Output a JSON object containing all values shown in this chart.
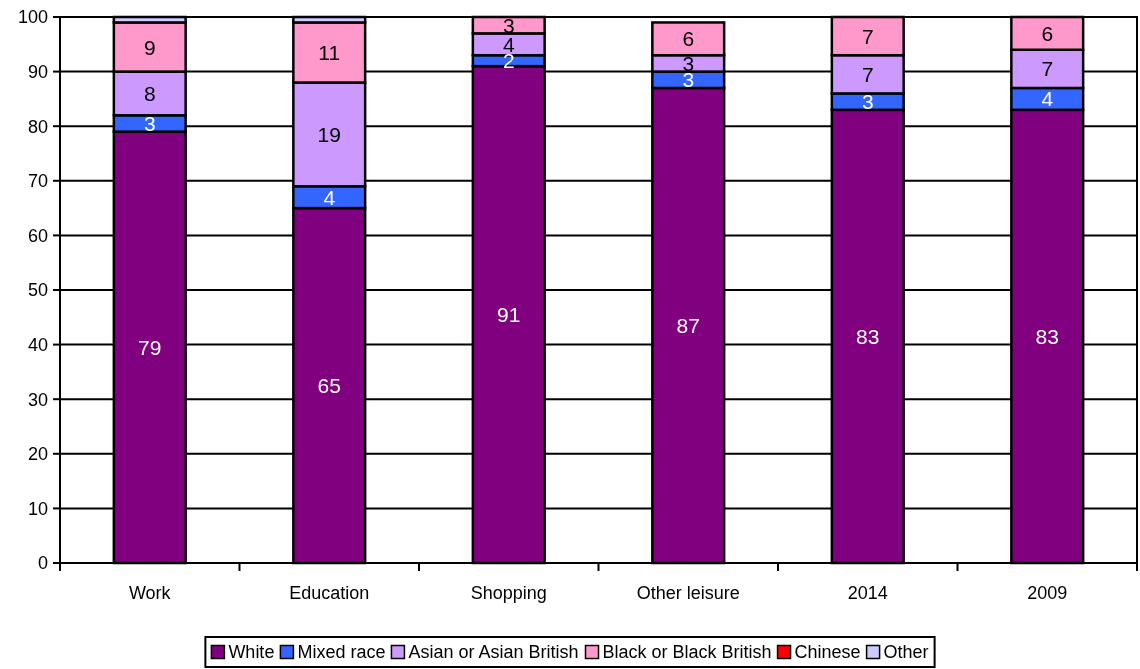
{
  "chart_data": {
    "type": "bar",
    "stacked": true,
    "categories": [
      "Work",
      "Education",
      "Shopping",
      "Other leisure",
      "2014",
      "2009"
    ],
    "series": [
      {
        "name": "White",
        "color": "#800080",
        "values": [
          79,
          65,
          91,
          87,
          83,
          83
        ],
        "value_labels": [
          "79",
          "65",
          "91",
          "87",
          "83",
          "83"
        ]
      },
      {
        "name": "Mixed race",
        "color": "#3366ff",
        "values": [
          3,
          4,
          2,
          3,
          3,
          4
        ],
        "value_labels": [
          "3",
          "4",
          "2",
          "3",
          "3",
          "4"
        ]
      },
      {
        "name": "Asian or Asian British",
        "color": "#cc99ff",
        "values": [
          8,
          19,
          4,
          3,
          7,
          7
        ],
        "value_labels": [
          "8",
          "19",
          "4",
          "3",
          "7",
          "7"
        ]
      },
      {
        "name": "Black or Black British",
        "color": "#ff99cc",
        "values": [
          9,
          11,
          3,
          6,
          7,
          6
        ],
        "value_labels": [
          "9",
          "11",
          "3",
          "6",
          "7",
          "6"
        ]
      },
      {
        "name": "Chinese",
        "color": "#ff0000",
        "values": [
          null,
          null,
          null,
          null,
          null,
          null
        ]
      },
      {
        "name": "Other",
        "color": "#ccccff",
        "values": [
          1,
          1,
          null,
          null,
          null,
          null
        ]
      }
    ],
    "ylim": [
      0,
      100
    ],
    "yticks": [
      0,
      10,
      20,
      30,
      40,
      50,
      60,
      70,
      80,
      90,
      100
    ],
    "grid": "y",
    "legend": "bottom"
  }
}
